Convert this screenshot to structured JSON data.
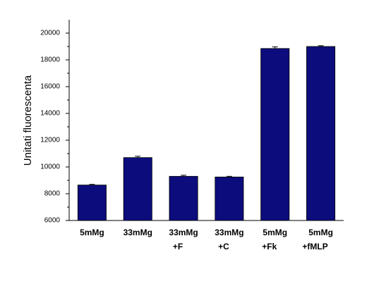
{
  "chart_data": {
    "type": "bar",
    "y_label": "Unitati fluorescenta",
    "categories": [
      [
        "5mMg"
      ],
      [
        "33mMg"
      ],
      [
        "33mMg",
        "+F"
      ],
      [
        "33mMg",
        "+C"
      ],
      [
        "5mMg",
        "+Fk"
      ],
      [
        "5mMg",
        "+fMLP"
      ]
    ],
    "values": [
      8650,
      10700,
      9300,
      9250,
      18850,
      19000
    ],
    "errors": [
      50,
      100,
      80,
      50,
      120,
      60
    ],
    "color": "#0c0c7c",
    "ylim": [
      6000,
      21000
    ],
    "yticks": [
      6000,
      8000,
      10000,
      12000,
      14000,
      16000,
      18000,
      20000
    ]
  }
}
